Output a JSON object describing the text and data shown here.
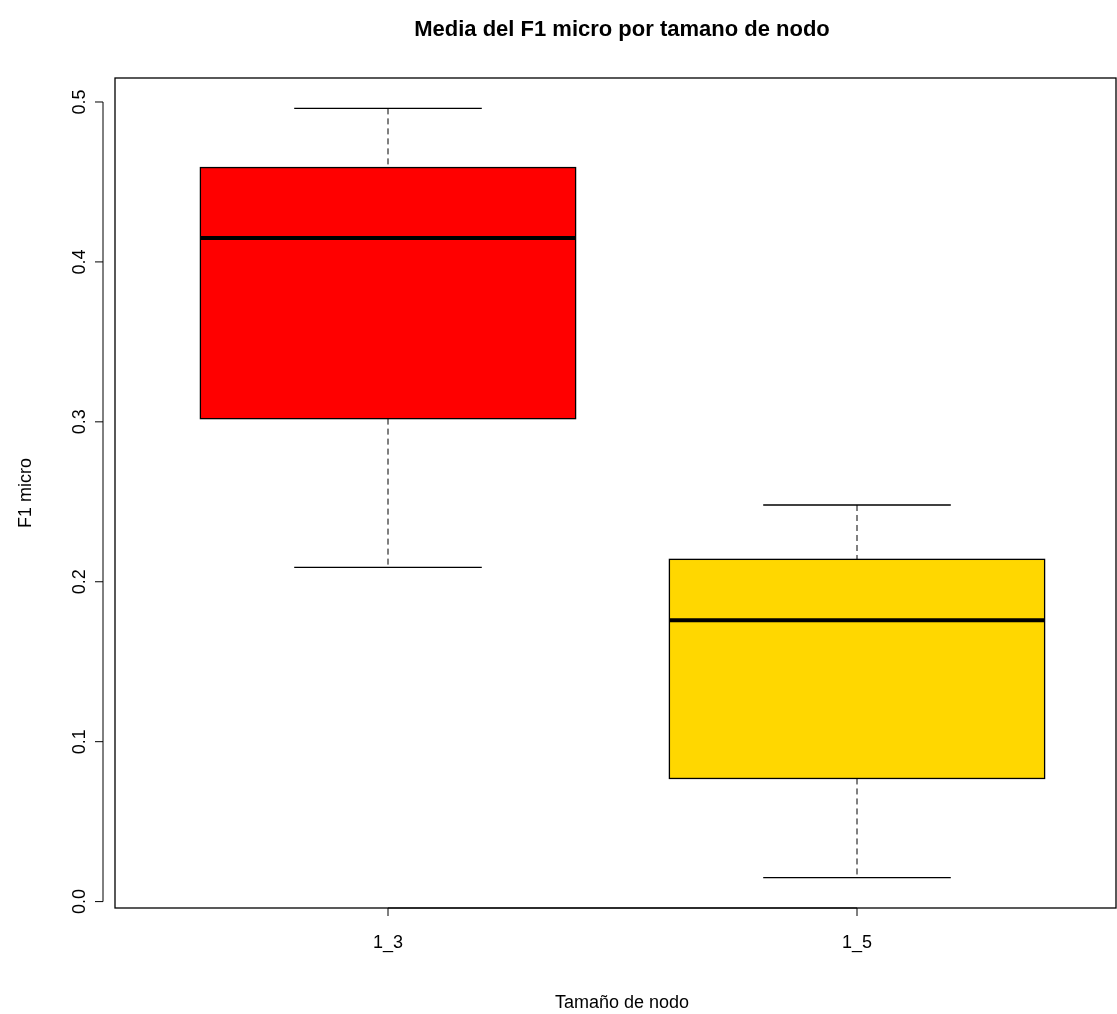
{
  "chart_data": {
    "type": "box",
    "title": "Media del F1 micro por tamano de nodo",
    "xlabel": "Tamaño de nodo",
    "ylabel": "F1 micro",
    "categories": [
      "1_3",
      "1_5"
    ],
    "colors": [
      "#ff0000",
      "#ffd700"
    ],
    "boxes": [
      {
        "low": 0.209,
        "q1": 0.302,
        "median": 0.415,
        "q3": 0.459,
        "high": 0.496
      },
      {
        "low": 0.015,
        "q1": 0.077,
        "median": 0.176,
        "q3": 0.214,
        "high": 0.248
      }
    ],
    "ylim": [
      -0.004,
      0.515
    ],
    "yticks": [
      {
        "value": 0,
        "label": "0.0"
      },
      0.1,
      0.2,
      0.3,
      0.4,
      0.5
    ],
    "grid": false
  }
}
